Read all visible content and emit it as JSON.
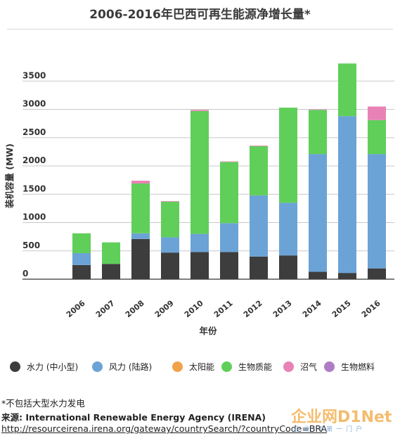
{
  "chart_data": {
    "type": "bar",
    "stacked": true,
    "title": "2006-2016年巴西可再生能源净增长量*",
    "xlabel": "年份",
    "ylabel": "装机容量 (MW)",
    "ylim": [
      0,
      3800
    ],
    "yticks": [
      0,
      500,
      1000,
      1500,
      2000,
      2500,
      3000,
      3500
    ],
    "grid": true,
    "legend_position": "bottom",
    "categories": [
      "2006",
      "2007",
      "2008",
      "2009",
      "2010",
      "2011",
      "2012",
      "2013",
      "2014",
      "2015",
      "2016"
    ],
    "series": [
      {
        "name": "水力 (中小型)",
        "color": "#3d3d3d",
        "values": [
          250,
          270,
          710,
          470,
          480,
          480,
          400,
          420,
          130,
          110,
          190
        ]
      },
      {
        "name": "风力 (陆路)",
        "color": "#6ba3d6",
        "values": [
          210,
          0,
          100,
          270,
          320,
          510,
          1080,
          930,
          2080,
          2770,
          2020
        ]
      },
      {
        "name": "太阳能",
        "color": "#f0a24a",
        "values": [
          0,
          0,
          0,
          0,
          0,
          0,
          0,
          0,
          0,
          0,
          0
        ]
      },
      {
        "name": "生物质能",
        "color": "#5fcf5a",
        "values": [
          350,
          380,
          880,
          630,
          2170,
          1080,
          870,
          1680,
          780,
          930,
          600
        ]
      },
      {
        "name": "沼气",
        "color": "#e882b6",
        "values": [
          0,
          0,
          50,
          10,
          20,
          10,
          10,
          0,
          10,
          0,
          240
        ]
      },
      {
        "name": "生物燃料",
        "color": "#b07cc6",
        "values": [
          0,
          0,
          0,
          0,
          0,
          0,
          0,
          0,
          0,
          0,
          0
        ]
      }
    ]
  },
  "footnotes": {
    "note": "*不包括大型水力发电",
    "source": "来源: International Renewable Energy Agency (IRENA)",
    "url": "http://resourceirena.irena.org/gateway/countrySearch/?countryCode=BRA"
  },
  "watermark": {
    "brand": "企业网D1Net",
    "sub": "企业IT第一门户"
  }
}
